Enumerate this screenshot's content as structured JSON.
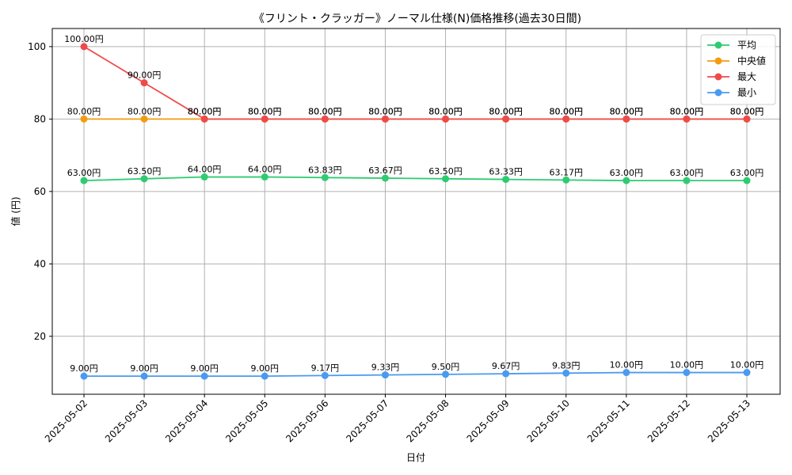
{
  "chart_data": {
    "type": "line",
    "title": "《フリント・クラッガー》ノーマル仕様(N)価格推移(過去30日間)",
    "xlabel": "日付",
    "ylabel": "値 (円)",
    "ylim": [
      4,
      105
    ],
    "yticks": [
      20,
      40,
      60,
      80,
      100
    ],
    "grid": true,
    "legend_position": "top-right",
    "categories": [
      "2025-05-02",
      "2025-05-03",
      "2025-05-04",
      "2025-05-05",
      "2025-05-06",
      "2025-05-07",
      "2025-05-08",
      "2025-05-09",
      "2025-05-10",
      "2025-05-11",
      "2025-05-12",
      "2025-05-13"
    ],
    "series": [
      {
        "name": "平均",
        "color": "#2ecc71",
        "values": [
          63.0,
          63.5,
          64.0,
          64.0,
          63.83,
          63.67,
          63.5,
          63.33,
          63.17,
          63.0,
          63.0,
          63.0
        ],
        "labels": [
          "63.00円",
          "63.50円",
          "64.00円",
          "64.00円",
          "63.83円",
          "63.67円",
          "63.50円",
          "63.33円",
          "63.17円",
          "63.00円",
          "63.00円",
          "63.00円"
        ]
      },
      {
        "name": "中央値",
        "color": "#f39c12",
        "values": [
          80,
          80,
          80,
          80,
          80,
          80,
          80,
          80,
          80,
          80,
          80,
          80
        ],
        "labels": [
          "80.00円",
          "80.00円",
          "80.00円",
          "80.00円",
          "80.00円",
          "80.00円",
          "80.00円",
          "80.00円",
          "80.00円",
          "80.00円",
          "80.00円",
          "80.00円"
        ]
      },
      {
        "name": "最大",
        "color": "#ef4a4a",
        "values": [
          100,
          90,
          80,
          80,
          80,
          80,
          80,
          80,
          80,
          80,
          80,
          80
        ],
        "labels": [
          "100.00円",
          "90.00円",
          "80.00円",
          "80.00円",
          "80.00円",
          "80.00円",
          "80.00円",
          "80.00円",
          "80.00円",
          "80.00円",
          "80.00円",
          "80.00円"
        ]
      },
      {
        "name": "最小",
        "color": "#4a9af0",
        "values": [
          9.0,
          9.0,
          9.0,
          9.0,
          9.17,
          9.33,
          9.5,
          9.67,
          9.83,
          10.0,
          10.0,
          10.0
        ],
        "labels": [
          "9.00円",
          "9.00円",
          "9.00円",
          "9.00円",
          "9.17円",
          "9.33円",
          "9.50円",
          "9.67円",
          "9.83円",
          "10.00円",
          "10.00円",
          "10.00円"
        ]
      }
    ]
  }
}
